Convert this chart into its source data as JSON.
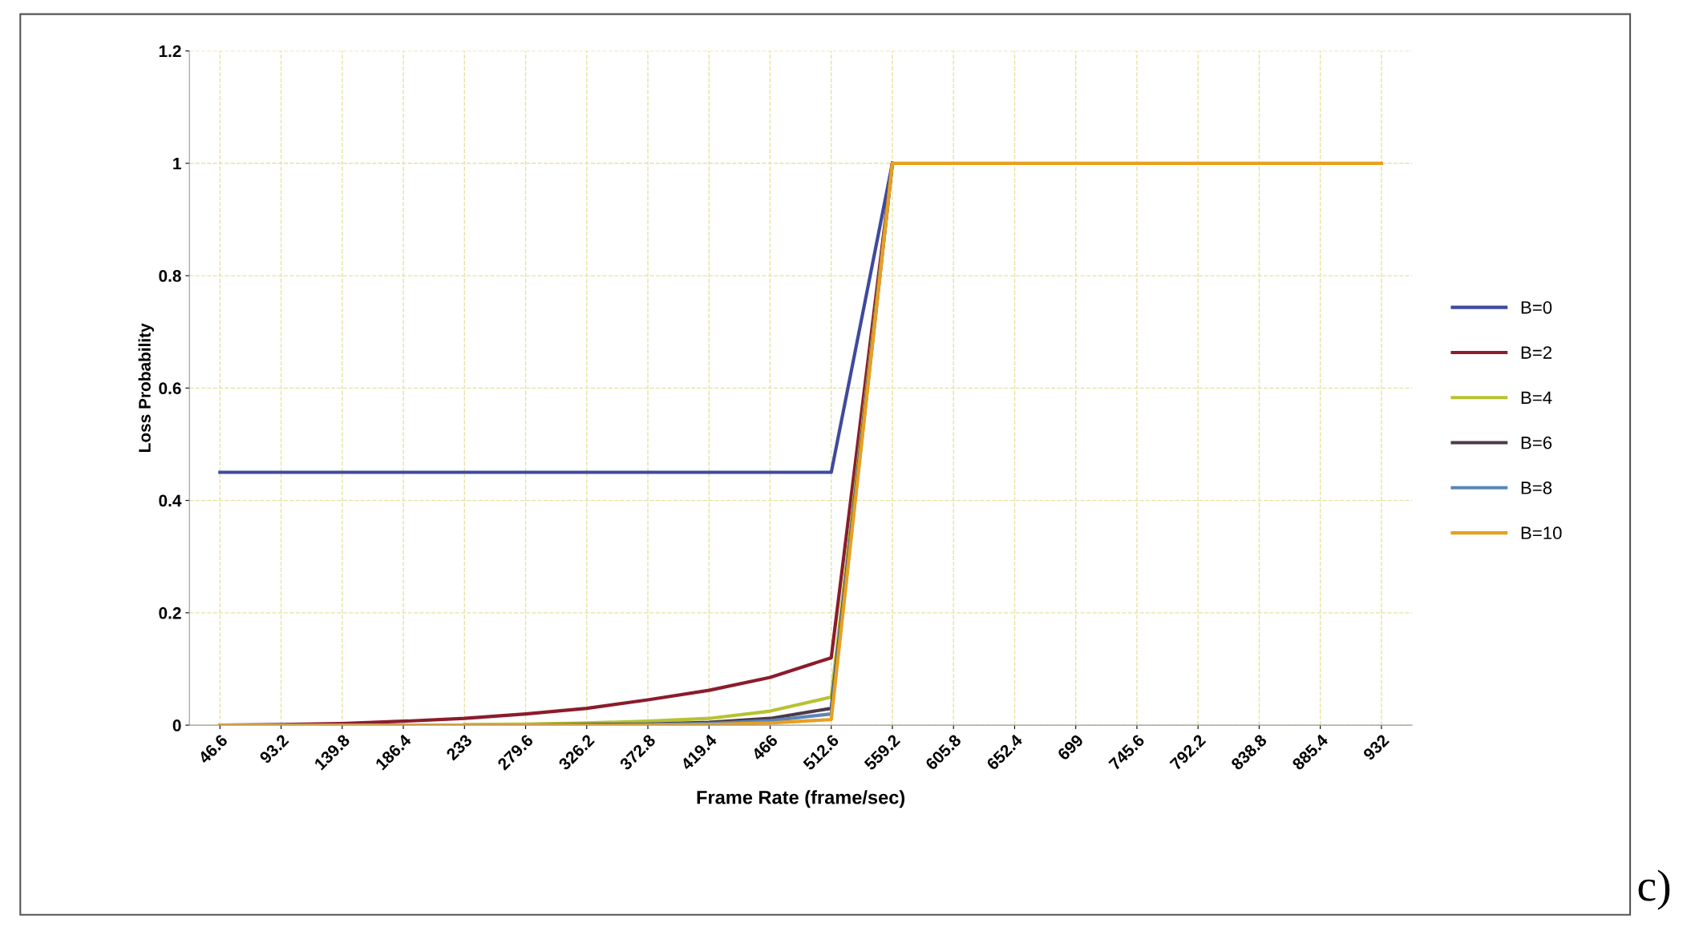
{
  "chart_data": {
    "type": "line",
    "xlabel": "Frame Rate (frame/sec)",
    "ylabel": "Loss Probability",
    "categories": [
      "46.6",
      "93.2",
      "139.8",
      "186.4",
      "233",
      "279.6",
      "326.2",
      "372.8",
      "419.4",
      "466",
      "512.6",
      "559.2",
      "605.8",
      "652.4",
      "699",
      "745.6",
      "792.2",
      "838.8",
      "885.4",
      "932"
    ],
    "series": [
      {
        "name": "B=0",
        "color": "#3f4a9e",
        "values": [
          0.45,
          0.45,
          0.45,
          0.45,
          0.45,
          0.45,
          0.45,
          0.45,
          0.45,
          0.45,
          0.45,
          1,
          null,
          null,
          null,
          null,
          null,
          null,
          null,
          null
        ]
      },
      {
        "name": "B=2",
        "color": "#8b1c2c",
        "values": [
          0,
          0.001,
          0.003,
          0.007,
          0.012,
          0.02,
          0.03,
          0.045,
          0.062,
          0.085,
          0.12,
          1,
          null,
          null,
          null,
          null,
          null,
          null,
          null,
          null
        ]
      },
      {
        "name": "B=4",
        "color": "#b8c230",
        "values": [
          null,
          null,
          null,
          null,
          0.001,
          0.002,
          0.004,
          0.007,
          0.012,
          0.025,
          0.05,
          1,
          null,
          null,
          null,
          null,
          null,
          null,
          null,
          null
        ]
      },
      {
        "name": "B=6",
        "color": "#4a3a4a",
        "values": [
          null,
          null,
          null,
          null,
          0,
          0,
          0.001,
          0.002,
          0.005,
          0.012,
          0.03,
          1,
          null,
          null,
          null,
          null,
          null,
          null,
          null,
          null
        ]
      },
      {
        "name": "B=8",
        "color": "#5a86b8",
        "values": [
          null,
          null,
          null,
          null,
          null,
          null,
          0,
          0.001,
          0.003,
          0.008,
          0.02,
          1,
          null,
          null,
          null,
          null,
          null,
          null,
          null,
          null
        ]
      },
      {
        "name": "B=10",
        "color": "#e8a020",
        "values": [
          0,
          0,
          0,
          0,
          0,
          0,
          0,
          0,
          0.001,
          0.004,
          0.01,
          1,
          1,
          1,
          1,
          1,
          1,
          1,
          1,
          1
        ]
      }
    ],
    "ylim": [
      0,
      1.2
    ],
    "yticks": [
      0,
      0.2,
      0.4,
      0.6,
      0.8,
      1,
      1.2
    ],
    "grid": true,
    "legend": "right",
    "marker": "none",
    "line_style": "solid",
    "annotations": [
      "c)"
    ]
  }
}
